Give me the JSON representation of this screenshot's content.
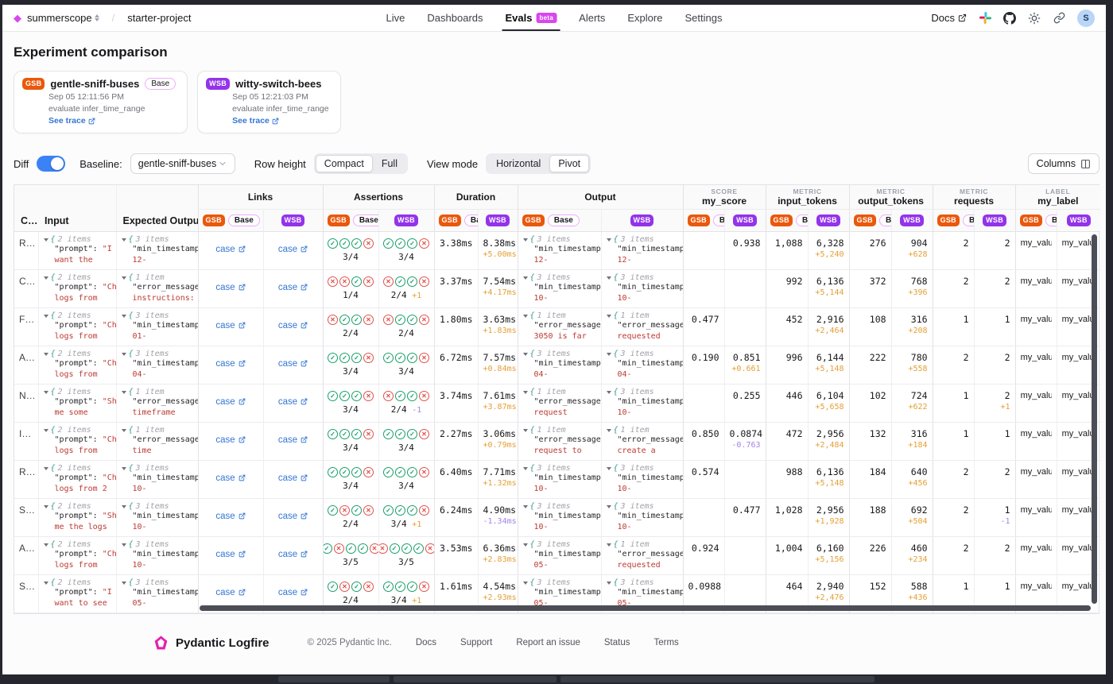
{
  "nav": {
    "org": "summerscope",
    "project": "starter-project",
    "items": [
      {
        "label": "Live"
      },
      {
        "label": "Dashboards"
      },
      {
        "label": "Evals",
        "badge": "beta",
        "active": true
      },
      {
        "label": "Alerts"
      },
      {
        "label": "Explore"
      },
      {
        "label": "Settings"
      }
    ],
    "docs_label": "Docs",
    "avatar": "S"
  },
  "page": {
    "title": "Experiment comparison"
  },
  "experiments": [
    {
      "abbr": "GSB",
      "name": "gentle-sniff-buses",
      "base_label": "Base",
      "timestamp": "Sep 05 12:11:56 PM",
      "task": "evaluate infer_time_range",
      "trace_label": "See trace",
      "color": "#ea580c"
    },
    {
      "abbr": "WSB",
      "name": "witty-switch-bees",
      "timestamp": "Sep 05 12:21:03 PM",
      "task": "evaluate infer_time_range",
      "trace_label": "See trace",
      "color": "#9333ea"
    }
  ],
  "controls": {
    "diff_label": "Diff",
    "diff_on": true,
    "baseline_label": "Baseline:",
    "baseline_value": "gentle-sniff-buses",
    "row_height_label": "Row height",
    "row_height_options": [
      "Compact",
      "Full"
    ],
    "row_height_selected": "Compact",
    "view_mode_label": "View mode",
    "view_mode_options": [
      "Horizontal",
      "Pivot"
    ],
    "view_mode_selected": "Pivot",
    "columns_button": "Columns"
  },
  "table": {
    "case_header": "C…",
    "input_header": "Input",
    "expected_header": "Expected Output",
    "link_label": "case",
    "groups": [
      {
        "label": "Links"
      },
      {
        "label": "Assertions"
      },
      {
        "label": "Duration"
      },
      {
        "label": "Output"
      },
      {
        "kicker": "SCORE",
        "label": "my_score"
      },
      {
        "kicker": "METRIC",
        "label": "input_tokens"
      },
      {
        "kicker": "METRIC",
        "label": "output_tokens"
      },
      {
        "kicker": "METRIC",
        "label": "requests"
      },
      {
        "kicker": "LABEL",
        "label": "my_label"
      }
    ],
    "rows": [
      {
        "case": "R…",
        "input": {
          "count": "2 items",
          "k": "\"prompt\": ",
          "r": "\"I",
          "r2": "want the"
        },
        "expected": {
          "count": "3 items",
          "k": "\"min_timestamp",
          "r": "",
          "r2": "12-"
        },
        "assertions": {
          "gsb": {
            "icons": "cccx",
            "score": "3/4",
            "diff": ""
          },
          "wsb": {
            "icons": "cccx",
            "score": "3/4",
            "diff": ""
          }
        },
        "duration": {
          "gsb": "3.38ms",
          "wsb": "8.38ms",
          "diff": "+5.00ms"
        },
        "output": {
          "gsb": {
            "count": "3 items",
            "k": "\"min_timestamp",
            "r2": "12-"
          },
          "wsb": {
            "count": "3 items",
            "k": "\"min_timestamp",
            "r2": "12-"
          }
        },
        "score": {
          "gsb": "",
          "wsb": "0.938",
          "diff": ""
        },
        "input_tokens": {
          "gsb": "1,088",
          "wsb": "6,328",
          "diff": "+5,240"
        },
        "output_tokens": {
          "gsb": "276",
          "wsb": "904",
          "diff": "+628"
        },
        "requests": {
          "gsb": "2",
          "wsb": "2",
          "diff": ""
        },
        "label": {
          "gsb": "my_value_",
          "wsb": "my_value_"
        }
      },
      {
        "case": "C…",
        "input": {
          "count": "2 items",
          "k": "\"prompt\": ",
          "r": "\"Ch",
          "r2": "logs from"
        },
        "expected": {
          "count": "1 item",
          "k": "\"error_message",
          "r": "",
          "r2": "instructions:"
        },
        "assertions": {
          "gsb": {
            "icons": "xxcx",
            "score": "1/4",
            "diff": ""
          },
          "wsb": {
            "icons": "xccx",
            "score": "2/4",
            "diff": "+1"
          }
        },
        "duration": {
          "gsb": "3.37ms",
          "wsb": "7.54ms",
          "diff": "+4.17ms"
        },
        "output": {
          "gsb": {
            "count": "3 items",
            "k": "\"min_timestamp",
            "r2": "10-"
          },
          "wsb": {
            "count": "3 items",
            "k": "\"min_timestamp",
            "r2": "10-"
          }
        },
        "score": {
          "gsb": "",
          "wsb": "",
          "diff": ""
        },
        "input_tokens": {
          "gsb": "992",
          "wsb": "6,136",
          "diff": "+5,144"
        },
        "output_tokens": {
          "gsb": "372",
          "wsb": "768",
          "diff": "+396"
        },
        "requests": {
          "gsb": "2",
          "wsb": "2",
          "diff": ""
        },
        "label": {
          "gsb": "my_value_",
          "wsb": "my_value_"
        }
      },
      {
        "case": "F…",
        "input": {
          "count": "2 items",
          "k": "\"prompt\": ",
          "r": "\"Ch",
          "r2": "logs from"
        },
        "expected": {
          "count": "3 items",
          "k": "\"min_timestamp",
          "r": "",
          "r2": "01-"
        },
        "assertions": {
          "gsb": {
            "icons": "xccx",
            "score": "2/4",
            "diff": ""
          },
          "wsb": {
            "icons": "xccx",
            "score": "2/4",
            "diff": ""
          }
        },
        "duration": {
          "gsb": "1.80ms",
          "wsb": "3.63ms",
          "diff": "+1.83ms"
        },
        "output": {
          "gsb": {
            "count": "1 item",
            "k": "\"error_message",
            "r2": "3050 is far"
          },
          "wsb": {
            "count": "1 item",
            "k": "\"error_message",
            "r2": "requested"
          }
        },
        "score": {
          "gsb": "0.477",
          "wsb": "",
          "diff": ""
        },
        "input_tokens": {
          "gsb": "452",
          "wsb": "2,916",
          "diff": "+2,464"
        },
        "output_tokens": {
          "gsb": "108",
          "wsb": "316",
          "diff": "+208"
        },
        "requests": {
          "gsb": "1",
          "wsb": "1",
          "diff": ""
        },
        "label": {
          "gsb": "my_value_",
          "wsb": "my_value_"
        }
      },
      {
        "case": "A…",
        "input": {
          "count": "2 items",
          "k": "\"prompt\": ",
          "r": "\"Ch",
          "r2": "logs from"
        },
        "expected": {
          "count": "3 items",
          "k": "\"min_timestamp",
          "r": "",
          "r2": "04-"
        },
        "assertions": {
          "gsb": {
            "icons": "cccx",
            "score": "3/4",
            "diff": ""
          },
          "wsb": {
            "icons": "cccx",
            "score": "3/4",
            "diff": ""
          }
        },
        "duration": {
          "gsb": "6.72ms",
          "wsb": "7.57ms",
          "diff": "+0.84ms"
        },
        "output": {
          "gsb": {
            "count": "3 items",
            "k": "\"min_timestamp",
            "r2": "04-"
          },
          "wsb": {
            "count": "3 items",
            "k": "\"min_timestamp",
            "r2": "04-"
          }
        },
        "score": {
          "gsb": "0.190",
          "wsb": "0.851",
          "diff": "+0.661"
        },
        "input_tokens": {
          "gsb": "996",
          "wsb": "6,144",
          "diff": "+5,148"
        },
        "output_tokens": {
          "gsb": "222",
          "wsb": "780",
          "diff": "+558"
        },
        "requests": {
          "gsb": "2",
          "wsb": "2",
          "diff": ""
        },
        "label": {
          "gsb": "my_value_",
          "wsb": "my_value_"
        }
      },
      {
        "case": "N…",
        "input": {
          "count": "2 items",
          "k": "\"prompt\": ",
          "r": "\"Sh",
          "r2": "me some"
        },
        "expected": {
          "count": "1 item",
          "k": "\"error_message",
          "r": "",
          "r2": "timeframe"
        },
        "assertions": {
          "gsb": {
            "icons": "cccx",
            "score": "3/4",
            "diff": ""
          },
          "wsb": {
            "icons": "xccx",
            "score": "2/4",
            "diff": "-1"
          }
        },
        "duration": {
          "gsb": "3.74ms",
          "wsb": "7.61ms",
          "diff": "+3.87ms"
        },
        "output": {
          "gsb": {
            "count": "1 item",
            "k": "\"error_message",
            "r2": "request"
          },
          "wsb": {
            "count": "3 items",
            "k": "\"min_timestamp",
            "r2": "10-"
          }
        },
        "score": {
          "gsb": "",
          "wsb": "0.255",
          "diff": ""
        },
        "input_tokens": {
          "gsb": "446",
          "wsb": "6,104",
          "diff": "+5,658"
        },
        "output_tokens": {
          "gsb": "102",
          "wsb": "724",
          "diff": "+622"
        },
        "requests": {
          "gsb": "1",
          "wsb": "2",
          "diff": "+1"
        },
        "label": {
          "gsb": "my_value_",
          "wsb": "my_value_"
        }
      },
      {
        "case": "I…",
        "input": {
          "count": "2 items",
          "k": "\"prompt\": ",
          "r": "\"Ch",
          "r2": "logs from"
        },
        "expected": {
          "count": "1 item",
          "k": "\"error_message",
          "r": "",
          "r2": "time"
        },
        "assertions": {
          "gsb": {
            "icons": "cccx",
            "score": "3/4",
            "diff": ""
          },
          "wsb": {
            "icons": "cccx",
            "score": "3/4",
            "diff": ""
          }
        },
        "duration": {
          "gsb": "2.27ms",
          "wsb": "3.06ms",
          "diff": "+0.79ms"
        },
        "output": {
          "gsb": {
            "count": "1 item",
            "k": "\"error_message",
            "r2": "request to"
          },
          "wsb": {
            "count": "1 item",
            "k": "\"error_message",
            "r2": "create a"
          }
        },
        "score": {
          "gsb": "0.850",
          "wsb": "0.0874",
          "diff": "-0.763"
        },
        "input_tokens": {
          "gsb": "472",
          "wsb": "2,956",
          "diff": "+2,484"
        },
        "output_tokens": {
          "gsb": "132",
          "wsb": "316",
          "diff": "+184"
        },
        "requests": {
          "gsb": "1",
          "wsb": "1",
          "diff": ""
        },
        "label": {
          "gsb": "my_value_",
          "wsb": "my_value_"
        }
      },
      {
        "case": "R…",
        "input": {
          "count": "2 items",
          "k": "\"prompt\": ",
          "r": "\"Ch",
          "r2": "logs from 2"
        },
        "expected": {
          "count": "3 items",
          "k": "\"min_timestamp",
          "r": "",
          "r2": "10-"
        },
        "assertions": {
          "gsb": {
            "icons": "cccx",
            "score": "3/4",
            "diff": ""
          },
          "wsb": {
            "icons": "cccx",
            "score": "3/4",
            "diff": ""
          }
        },
        "duration": {
          "gsb": "6.40ms",
          "wsb": "7.71ms",
          "diff": "+1.32ms"
        },
        "output": {
          "gsb": {
            "count": "3 items",
            "k": "\"min_timestamp",
            "r2": "10-"
          },
          "wsb": {
            "count": "3 items",
            "k": "\"min_timestamp",
            "r2": "10-"
          }
        },
        "score": {
          "gsb": "0.574",
          "wsb": "",
          "diff": ""
        },
        "input_tokens": {
          "gsb": "988",
          "wsb": "6,136",
          "diff": "+5,148"
        },
        "output_tokens": {
          "gsb": "184",
          "wsb": "640",
          "diff": "+456"
        },
        "requests": {
          "gsb": "2",
          "wsb": "2",
          "diff": ""
        },
        "label": {
          "gsb": "my_value_",
          "wsb": "my_value_"
        }
      },
      {
        "case": "S…",
        "input": {
          "count": "2 items",
          "k": "\"prompt\": ",
          "r": "\"Sh",
          "r2": "me the logs"
        },
        "expected": {
          "count": "3 items",
          "k": "\"min_timestamp",
          "r": "",
          "r2": "10-"
        },
        "assertions": {
          "gsb": {
            "icons": "cxcx",
            "score": "2/4",
            "diff": ""
          },
          "wsb": {
            "icons": "cccx",
            "score": "3/4",
            "diff": "+1"
          }
        },
        "duration": {
          "gsb": "6.24ms",
          "wsb": "4.90ms",
          "diff": "-1.34ms"
        },
        "output": {
          "gsb": {
            "count": "3 items",
            "k": "\"min_timestamp",
            "r2": "10-"
          },
          "wsb": {
            "count": "3 items",
            "k": "\"min_timestamp",
            "r2": "10-"
          }
        },
        "score": {
          "gsb": "",
          "wsb": "0.477",
          "diff": ""
        },
        "input_tokens": {
          "gsb": "1,028",
          "wsb": "2,956",
          "diff": "+1,928"
        },
        "output_tokens": {
          "gsb": "188",
          "wsb": "692",
          "diff": "+504"
        },
        "requests": {
          "gsb": "2",
          "wsb": "1",
          "diff": "-1"
        },
        "label": {
          "gsb": "my_value_",
          "wsb": "my_value_"
        }
      },
      {
        "case": "A…",
        "input": {
          "count": "2 items",
          "k": "\"prompt\": ",
          "r": "\"Ch",
          "r2": "logs from"
        },
        "expected": {
          "count": "3 items",
          "k": "\"min_timestamp",
          "r": "",
          "r2": "10-"
        },
        "assertions": {
          "gsb": {
            "icons": "cxccx",
            "score": "3/5",
            "diff": ""
          },
          "wsb": {
            "icons": "xcccx",
            "score": "3/5",
            "diff": ""
          }
        },
        "duration": {
          "gsb": "3.53ms",
          "wsb": "6.36ms",
          "diff": "+2.83ms"
        },
        "output": {
          "gsb": {
            "count": "3 items",
            "k": "\"min_timestamp",
            "r2": "05-"
          },
          "wsb": {
            "count": "1 item",
            "k": "\"error_message",
            "r2": "requested"
          }
        },
        "score": {
          "gsb": "0.924",
          "wsb": "",
          "diff": ""
        },
        "input_tokens": {
          "gsb": "1,004",
          "wsb": "6,160",
          "diff": "+5,156"
        },
        "output_tokens": {
          "gsb": "226",
          "wsb": "460",
          "diff": "+234"
        },
        "requests": {
          "gsb": "2",
          "wsb": "2",
          "diff": ""
        },
        "label": {
          "gsb": "my_value_",
          "wsb": "my_value_"
        }
      },
      {
        "case": "S…",
        "input": {
          "count": "2 items",
          "k": "\"prompt\": ",
          "r": "\"I",
          "r2": "want to see"
        },
        "expected": {
          "count": "3 items",
          "k": "\"min_timestamp",
          "r": "",
          "r2": "05-"
        },
        "assertions": {
          "gsb": {
            "icons": "cxcx",
            "score": "2/4",
            "diff": ""
          },
          "wsb": {
            "icons": "cccx",
            "score": "3/4",
            "diff": "+1"
          }
        },
        "duration": {
          "gsb": "1.61ms",
          "wsb": "4.54ms",
          "diff": "+2.93ms"
        },
        "output": {
          "gsb": {
            "count": "3 items",
            "k": "\"min_timestamp",
            "r2": "05-"
          },
          "wsb": {
            "count": "3 items",
            "k": "\"min_timestamp",
            "r2": "05-"
          }
        },
        "score": {
          "gsb": "0.0988",
          "wsb": "",
          "diff": ""
        },
        "input_tokens": {
          "gsb": "464",
          "wsb": "2,940",
          "diff": "+2,476"
        },
        "output_tokens": {
          "gsb": "152",
          "wsb": "588",
          "diff": "+436"
        },
        "requests": {
          "gsb": "1",
          "wsb": "1",
          "diff": ""
        },
        "label": {
          "gsb": "my_value_",
          "wsb": "my_value_"
        }
      }
    ]
  },
  "footer": {
    "brand": "Pydantic Logfire",
    "copyright": "© 2025 Pydantic Inc.",
    "links": [
      "Docs",
      "Support",
      "Report an issue",
      "Status",
      "Terms"
    ]
  },
  "colors": {
    "accent_magenta": "#d946ef",
    "gsb_orange": "#ea580c",
    "wsb_purple": "#9333ea",
    "link_blue": "#3576d3",
    "diff_positive": "#e59f35",
    "diff_negative": "#a583e8",
    "assert_pass": "#18a06b",
    "assert_fail": "#e0524c",
    "json_string_red": "#bb3a33"
  }
}
